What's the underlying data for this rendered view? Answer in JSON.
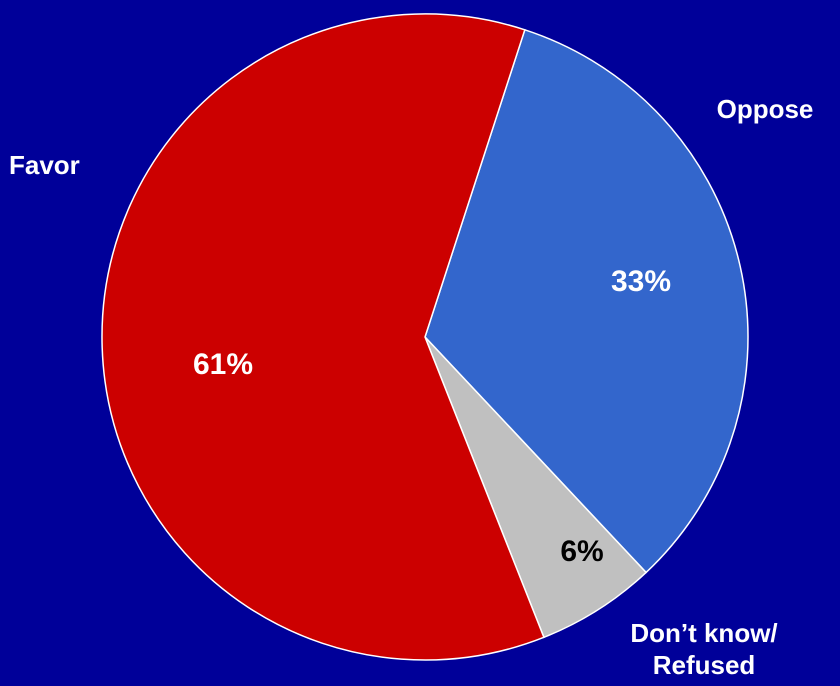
{
  "chart_data": {
    "type": "pie",
    "slices": [
      {
        "category": "Oppose",
        "value": 33,
        "value_label": "33%",
        "color": "#3366CC",
        "value_label_color": "#ffffff"
      },
      {
        "category": "Don’t know/ Refused",
        "category_lines": [
          "Don’t know/",
          "Refused"
        ],
        "value": 6,
        "value_label": "6%",
        "color": "#C0C0C0",
        "value_label_color": "#000000"
      },
      {
        "category": "Favor",
        "value": 61,
        "value_label": "61%",
        "color": "#CC0000",
        "value_label_color": "#ffffff"
      }
    ],
    "start_angle_deg": 18,
    "direction": "clockwise",
    "background_color": "#000099",
    "edge_color": "#ffffff"
  }
}
